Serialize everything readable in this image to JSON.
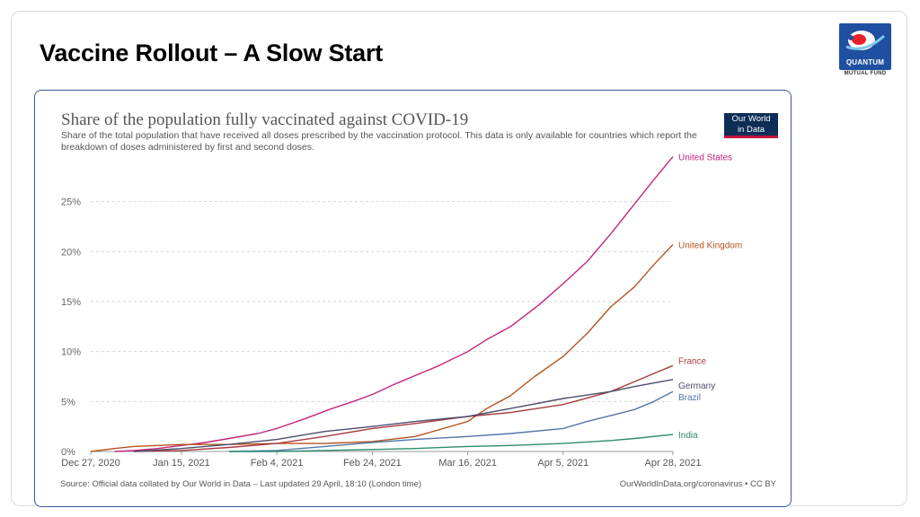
{
  "slide": {
    "title": "Vaccine Rollout – A Slow Start",
    "logo": {
      "wordmark": "QUANTUM",
      "subtext": "MUTUAL FUND",
      "colors": {
        "box": "#1f4fa0",
        "swoosh": "#e8212b"
      }
    }
  },
  "chart_card": {
    "brand": {
      "line1": "Our World",
      "line2": "in Data"
    },
    "footer_source": "Source: Official data collated by Our World in Data – Last updated 29 April, 18:10 (London time)",
    "footer_license": "OurWorldInData.org/coronavirus • CC BY"
  },
  "chart_data": {
    "type": "line",
    "title": "Share of the population fully vaccinated against COVID-19",
    "subtitle": "Share of the total population that have received all doses prescribed by the vaccination protocol. This data is only available for countries which report the breakdown of doses administered by first and second doses.",
    "xlabel": "",
    "ylabel": "",
    "x_axis": {
      "type": "date",
      "start": "2020-12-27",
      "end": "2021-04-28",
      "tick_labels": [
        "Dec 27, 2020",
        "Jan 15, 2021",
        "Feb 4, 2021",
        "Feb 24, 2021",
        "Mar 16, 2021",
        "Apr 5, 2021",
        "Apr 28, 2021"
      ],
      "tick_dates": [
        "2020-12-27",
        "2021-01-15",
        "2021-02-04",
        "2021-02-24",
        "2021-03-16",
        "2021-04-05",
        "2021-04-28"
      ]
    },
    "y_axis": {
      "ylim": [
        0,
        30
      ],
      "ticks": [
        0,
        5,
        10,
        15,
        20,
        25
      ],
      "tick_labels": [
        "0%",
        "5%",
        "10%",
        "15%",
        "20%",
        "25%"
      ],
      "grid": true,
      "grid_style": "dashed"
    },
    "legend": "end-of-line labels (right)",
    "series": [
      {
        "name": "United States",
        "color": "#c2267a",
        "points": [
          [
            "2021-01-01",
            0.0
          ],
          [
            "2021-01-05",
            0.1
          ],
          [
            "2021-01-10",
            0.3
          ],
          [
            "2021-01-15",
            0.6
          ],
          [
            "2021-01-20",
            0.9
          ],
          [
            "2021-01-25",
            1.3
          ],
          [
            "2021-01-31",
            1.8
          ],
          [
            "2021-02-04",
            2.3
          ],
          [
            "2021-02-10",
            3.3
          ],
          [
            "2021-02-15",
            4.2
          ],
          [
            "2021-02-20",
            5.0
          ],
          [
            "2021-02-24",
            5.7
          ],
          [
            "2021-03-01",
            6.8
          ],
          [
            "2021-03-05",
            7.6
          ],
          [
            "2021-03-10",
            8.6
          ],
          [
            "2021-03-16",
            10.0
          ],
          [
            "2021-03-20",
            11.2
          ],
          [
            "2021-03-25",
            12.5
          ],
          [
            "2021-03-31",
            14.7
          ],
          [
            "2021-04-05",
            16.8
          ],
          [
            "2021-04-10",
            19.0
          ],
          [
            "2021-04-15",
            21.8
          ],
          [
            "2021-04-20",
            24.8
          ],
          [
            "2021-04-24",
            27.2
          ],
          [
            "2021-04-28",
            29.5
          ]
        ]
      },
      {
        "name": "United Kingdom",
        "color": "#b5541e",
        "points": [
          [
            "2020-12-27",
            0.0
          ],
          [
            "2021-01-01",
            0.3
          ],
          [
            "2021-01-05",
            0.5
          ],
          [
            "2021-01-10",
            0.6
          ],
          [
            "2021-01-15",
            0.7
          ],
          [
            "2021-01-25",
            0.7
          ],
          [
            "2021-02-04",
            0.8
          ],
          [
            "2021-02-14",
            0.8
          ],
          [
            "2021-02-24",
            1.0
          ],
          [
            "2021-03-05",
            1.5
          ],
          [
            "2021-03-16",
            3.0
          ],
          [
            "2021-03-20",
            4.3
          ],
          [
            "2021-03-25",
            5.6
          ],
          [
            "2021-03-30",
            7.5
          ],
          [
            "2021-04-05",
            9.5
          ],
          [
            "2021-04-10",
            11.8
          ],
          [
            "2021-04-15",
            14.5
          ],
          [
            "2021-04-20",
            16.5
          ],
          [
            "2021-04-24",
            18.7
          ],
          [
            "2021-04-28",
            20.7
          ]
        ]
      },
      {
        "name": "France",
        "color": "#a73a3f",
        "points": [
          [
            "2021-01-05",
            0.0
          ],
          [
            "2021-01-15",
            0.1
          ],
          [
            "2021-01-25",
            0.4
          ],
          [
            "2021-02-04",
            0.8
          ],
          [
            "2021-02-14",
            1.5
          ],
          [
            "2021-02-24",
            2.3
          ],
          [
            "2021-03-05",
            2.8
          ],
          [
            "2021-03-16",
            3.5
          ],
          [
            "2021-03-25",
            3.9
          ],
          [
            "2021-04-05",
            4.7
          ],
          [
            "2021-04-15",
            6.0
          ],
          [
            "2021-04-20",
            7.0
          ],
          [
            "2021-04-25",
            8.0
          ],
          [
            "2021-04-28",
            8.6
          ]
        ]
      },
      {
        "name": "Germany",
        "color": "#4b4f6b",
        "points": [
          [
            "2021-01-05",
            0.0
          ],
          [
            "2021-01-15",
            0.3
          ],
          [
            "2021-01-25",
            0.7
          ],
          [
            "2021-02-04",
            1.2
          ],
          [
            "2021-02-14",
            2.0
          ],
          [
            "2021-02-24",
            2.5
          ],
          [
            "2021-03-05",
            3.0
          ],
          [
            "2021-03-16",
            3.5
          ],
          [
            "2021-03-25",
            4.3
          ],
          [
            "2021-04-05",
            5.3
          ],
          [
            "2021-04-15",
            6.0
          ],
          [
            "2021-04-20",
            6.5
          ],
          [
            "2021-04-28",
            7.2
          ]
        ]
      },
      {
        "name": "Brazil",
        "color": "#5377a8",
        "points": [
          [
            "2021-01-25",
            0.0
          ],
          [
            "2021-02-04",
            0.1
          ],
          [
            "2021-02-14",
            0.5
          ],
          [
            "2021-02-24",
            0.9
          ],
          [
            "2021-03-05",
            1.2
          ],
          [
            "2021-03-16",
            1.5
          ],
          [
            "2021-03-25",
            1.8
          ],
          [
            "2021-04-05",
            2.3
          ],
          [
            "2021-04-10",
            3.0
          ],
          [
            "2021-04-15",
            3.6
          ],
          [
            "2021-04-20",
            4.2
          ],
          [
            "2021-04-24",
            5.0
          ],
          [
            "2021-04-28",
            6.0
          ]
        ]
      },
      {
        "name": "India",
        "color": "#2e8b6f",
        "points": [
          [
            "2021-01-25",
            0.0
          ],
          [
            "2021-02-04",
            0.0
          ],
          [
            "2021-02-14",
            0.1
          ],
          [
            "2021-02-24",
            0.2
          ],
          [
            "2021-03-05",
            0.3
          ],
          [
            "2021-03-16",
            0.5
          ],
          [
            "2021-03-25",
            0.6
          ],
          [
            "2021-04-05",
            0.8
          ],
          [
            "2021-04-15",
            1.1
          ],
          [
            "2021-04-20",
            1.3
          ],
          [
            "2021-04-28",
            1.7
          ]
        ]
      }
    ]
  }
}
